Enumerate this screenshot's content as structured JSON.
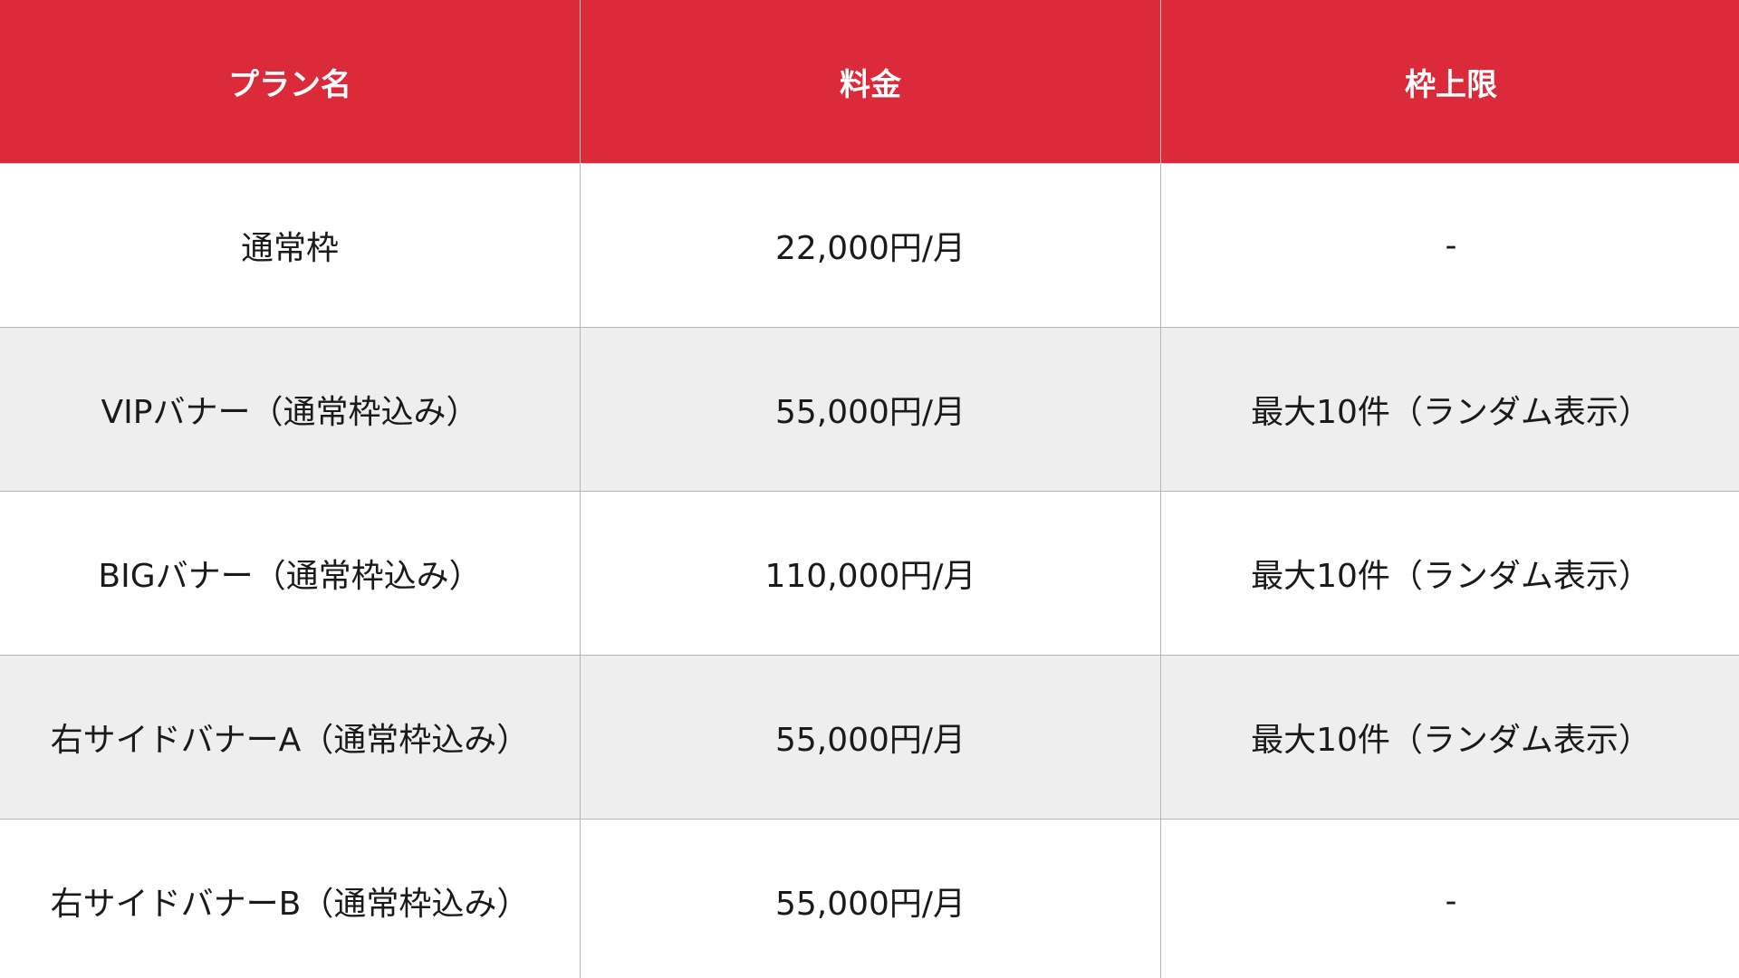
{
  "colors": {
    "header_bg": "#db2b3b",
    "header_text": "#ffffff",
    "alt_row_bg": "#eeeeee"
  },
  "headers": [
    "プラン名",
    "料金",
    "枠上限"
  ],
  "rows": [
    [
      "通常枠",
      "22,000円/月",
      "-"
    ],
    [
      "VIPバナー（通常枠込み）",
      "55,000円/月",
      "最大10件（ランダム表示）"
    ],
    [
      "BIGバナー（通常枠込み）",
      "110,000円/月",
      "最大10件（ランダム表示）"
    ],
    [
      "右サイドバナーA（通常枠込み）",
      "55,000円/月",
      "最大10件（ランダム表示）"
    ],
    [
      "右サイドバナーB（通常枠込み）",
      "55,000円/月",
      "-"
    ]
  ]
}
